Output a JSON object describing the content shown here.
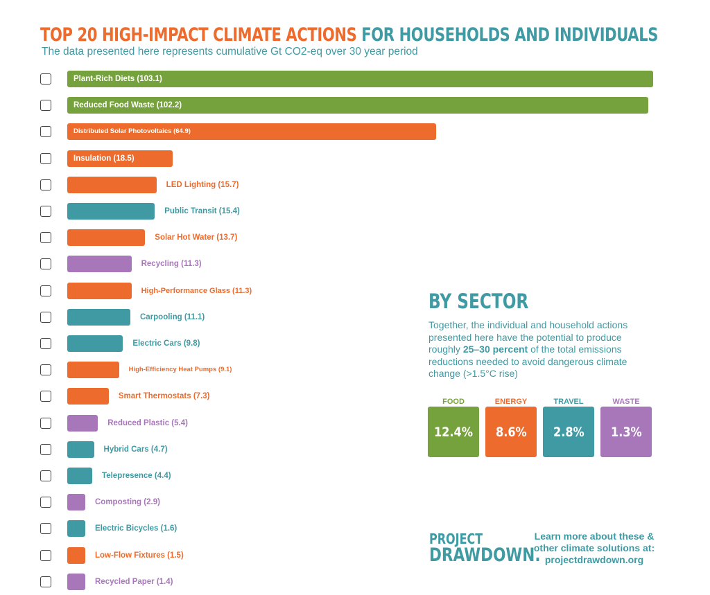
{
  "header": {
    "title_part1": "TOP 20 HIGH-IMPACT CLIMATE ACTIONS",
    "title_part2": "FOR HOUSEHOLDS AND INDIVIDUALS",
    "subtitle": "The data presented here represents cumulative Gt CO2-eq over 30 year period"
  },
  "colors": {
    "food": "#76a23d",
    "energy": "#ec6b2d",
    "travel": "#3f9aa3",
    "waste": "#a777ba"
  },
  "chart_data": {
    "type": "bar",
    "orientation": "horizontal",
    "title": "TOP 20 HIGH-IMPACT CLIMATE ACTIONS FOR HOUSEHOLDS AND INDIVIDUALS",
    "xlim": [
      0,
      103.1
    ],
    "bars": [
      {
        "label": "Plant-Rich Diets (103.1)",
        "value": 103.1,
        "sector": "food"
      },
      {
        "label": "Reduced Food Waste (102.2)",
        "value": 102.2,
        "sector": "food"
      },
      {
        "label": "Distributed Solar Photovoltaics (64.9)",
        "value": 64.9,
        "sector": "energy"
      },
      {
        "label": "Insulation (18.5)",
        "value": 18.5,
        "sector": "energy"
      },
      {
        "label": "LED Lighting (15.7)",
        "value": 15.7,
        "sector": "energy"
      },
      {
        "label": "Public Transit (15.4)",
        "value": 15.4,
        "sector": "travel"
      },
      {
        "label": "Solar Hot Water (13.7)",
        "value": 13.7,
        "sector": "energy"
      },
      {
        "label": "Recycling (11.3)",
        "value": 11.3,
        "sector": "waste"
      },
      {
        "label": "High-Performance Glass (11.3)",
        "value": 11.3,
        "sector": "energy"
      },
      {
        "label": "Carpooling (11.1)",
        "value": 11.1,
        "sector": "travel"
      },
      {
        "label": "Electric Cars (9.8)",
        "value": 9.8,
        "sector": "travel"
      },
      {
        "label": "High-Efficiency Heat Pumps (9.1)",
        "value": 9.1,
        "sector": "energy"
      },
      {
        "label": "Smart Thermostats (7.3)",
        "value": 7.3,
        "sector": "energy"
      },
      {
        "label": "Reduced Plastic (5.4)",
        "value": 5.4,
        "sector": "waste"
      },
      {
        "label": "Hybrid Cars (4.7)",
        "value": 4.7,
        "sector": "travel"
      },
      {
        "label": "Telepresence (4.4)",
        "value": 4.4,
        "sector": "travel"
      },
      {
        "label": "Composting (2.9)",
        "value": 2.9,
        "sector": "waste"
      },
      {
        "label": "Electric Bicycles (1.6)",
        "value": 1.6,
        "sector": "travel"
      },
      {
        "label": "Low-Flow Fixtures (1.5)",
        "value": 1.5,
        "sector": "energy"
      },
      {
        "label": "Recycled Paper (1.4)",
        "value": 1.4,
        "sector": "waste"
      }
    ]
  },
  "sector_panel": {
    "title": "BY SECTOR",
    "text_before": "Together, the individual and household actions presented here have the potential to produce roughly ",
    "text_bold": "25–30 percent",
    "text_after": " of the total emissions reductions needed to avoid dangerous climate change (>1.5°C rise)",
    "tiles": [
      {
        "label": "FOOD",
        "value": "12.4%",
        "sector": "food"
      },
      {
        "label": "ENERGY",
        "value": "8.6%",
        "sector": "energy"
      },
      {
        "label": "TRAVEL",
        "value": "2.8%",
        "sector": "travel"
      },
      {
        "label": "WASTE",
        "value": "1.3%",
        "sector": "waste"
      }
    ]
  },
  "footer": {
    "logo_line1": "PROJECT",
    "logo_line2": "DRAWDOWN.",
    "learn_line1": "Learn more about these &",
    "learn_line2": "other climate solutions at:",
    "learn_line3": "projectdrawdown.org"
  }
}
